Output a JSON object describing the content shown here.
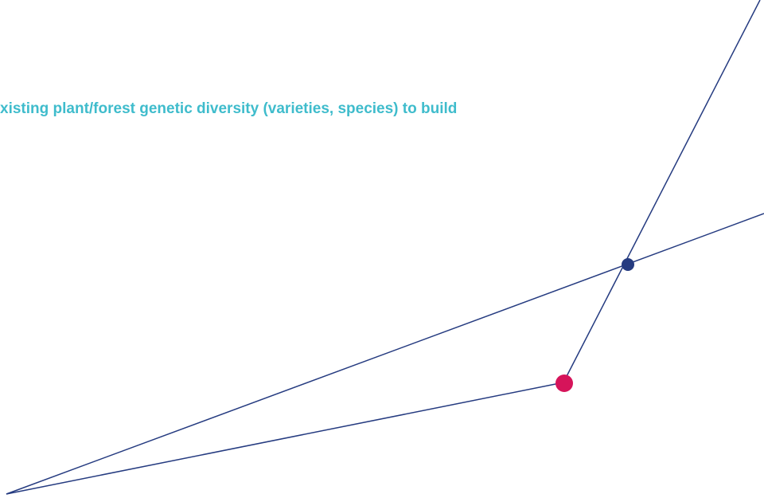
{
  "caption": "xisting plant/forest genetic diversity (varieties, species) to build"
}
